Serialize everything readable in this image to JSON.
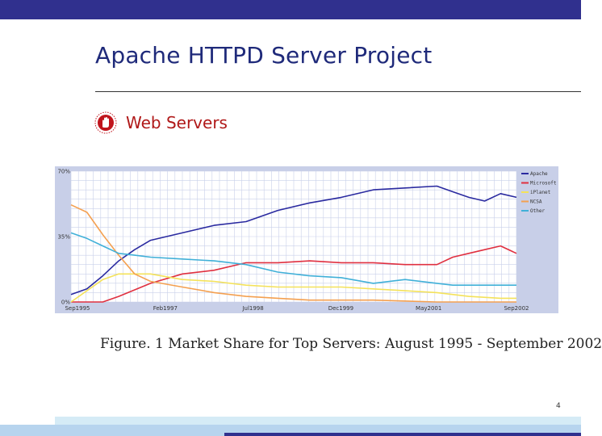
{
  "slide": {
    "title": "Apache HTTPD Server Project",
    "bullet": "Web Servers",
    "caption": "Figure. 1 Market Share for Top Servers: August 1995 - September 2002",
    "page_number": "4"
  },
  "colors": {
    "top_bar": "#30308e",
    "title": "#1f2a7a",
    "bullet_text": "#b01818",
    "bullet_icon": "#c0141c",
    "chart_panel": "#c8cfe8",
    "bottom_strip": "#b7d4ee"
  },
  "chart_data": {
    "type": "line",
    "x_start": "1995-09",
    "x_end": "2002-09",
    "x_tick_labels": [
      "Sep1995",
      "Feb1997",
      "Jul1998",
      "Dec1999",
      "May2001",
      "Sep2002"
    ],
    "y_tick_labels": [
      "70%",
      "35%",
      "0%"
    ],
    "ylim": [
      0,
      70
    ],
    "grid": true,
    "legend_position": "top-right",
    "series": [
      {
        "name": "Apache",
        "color": "#2a2aa0",
        "points": [
          [
            "1995-09",
            4
          ],
          [
            "1995-12",
            7
          ],
          [
            "1996-03",
            14
          ],
          [
            "1996-06",
            22
          ],
          [
            "1996-09",
            28
          ],
          [
            "1996-12",
            33
          ],
          [
            "1997-06",
            37
          ],
          [
            "1997-12",
            41
          ],
          [
            "1998-06",
            43
          ],
          [
            "1998-12",
            49
          ],
          [
            "1999-06",
            53
          ],
          [
            "1999-12",
            56
          ],
          [
            "2000-06",
            60
          ],
          [
            "2000-12",
            61
          ],
          [
            "2001-06",
            62
          ],
          [
            "2001-09",
            59
          ],
          [
            "2001-12",
            56
          ],
          [
            "2002-03",
            54
          ],
          [
            "2002-06",
            58
          ],
          [
            "2002-09",
            56
          ]
        ]
      },
      {
        "name": "Microsoft",
        "color": "#e03040",
        "points": [
          [
            "1995-09",
            0
          ],
          [
            "1996-03",
            0
          ],
          [
            "1996-06",
            3
          ],
          [
            "1996-12",
            10
          ],
          [
            "1997-06",
            15
          ],
          [
            "1997-12",
            17
          ],
          [
            "1998-06",
            21
          ],
          [
            "1998-12",
            21
          ],
          [
            "1999-06",
            22
          ],
          [
            "1999-12",
            21
          ],
          [
            "2000-06",
            21
          ],
          [
            "2000-12",
            20
          ],
          [
            "2001-06",
            20
          ],
          [
            "2001-09",
            24
          ],
          [
            "2001-12",
            26
          ],
          [
            "2002-03",
            28
          ],
          [
            "2002-06",
            30
          ],
          [
            "2002-09",
            26
          ]
        ]
      },
      {
        "name": "iPlanet",
        "color": "#f4e25a",
        "points": [
          [
            "1995-09",
            0
          ],
          [
            "1996-03",
            12
          ],
          [
            "1996-06",
            15
          ],
          [
            "1996-12",
            15
          ],
          [
            "1997-06",
            12
          ],
          [
            "1997-12",
            11
          ],
          [
            "1998-06",
            9
          ],
          [
            "1998-12",
            8
          ],
          [
            "1999-06",
            8
          ],
          [
            "1999-12",
            8
          ],
          [
            "2000-06",
            7
          ],
          [
            "2000-12",
            6
          ],
          [
            "2001-06",
            5
          ],
          [
            "2001-12",
            3
          ],
          [
            "2002-06",
            2
          ],
          [
            "2002-09",
            2
          ]
        ]
      },
      {
        "name": "NCSA",
        "color": "#f4a050",
        "points": [
          [
            "1995-09",
            52
          ],
          [
            "1995-12",
            48
          ],
          [
            "1996-03",
            36
          ],
          [
            "1996-06",
            25
          ],
          [
            "1996-09",
            15
          ],
          [
            "1996-12",
            11
          ],
          [
            "1997-06",
            8
          ],
          [
            "1997-12",
            5
          ],
          [
            "1998-06",
            3
          ],
          [
            "1998-12",
            2
          ],
          [
            "1999-06",
            1
          ],
          [
            "2000-06",
            1
          ],
          [
            "2001-06",
            0
          ],
          [
            "2002-09",
            0
          ]
        ]
      },
      {
        "name": "Other",
        "color": "#40b0d8",
        "points": [
          [
            "1995-09",
            37
          ],
          [
            "1995-12",
            34
          ],
          [
            "1996-03",
            30
          ],
          [
            "1996-06",
            26
          ],
          [
            "1996-09",
            25
          ],
          [
            "1996-12",
            24
          ],
          [
            "1997-06",
            23
          ],
          [
            "1997-12",
            22
          ],
          [
            "1998-06",
            20
          ],
          [
            "1998-12",
            16
          ],
          [
            "1999-06",
            14
          ],
          [
            "1999-12",
            13
          ],
          [
            "2000-06",
            10
          ],
          [
            "2000-12",
            12
          ],
          [
            "2001-06",
            10
          ],
          [
            "2001-09",
            9
          ],
          [
            "2001-12",
            9
          ],
          [
            "2002-06",
            9
          ],
          [
            "2002-09",
            9
          ]
        ]
      }
    ]
  }
}
